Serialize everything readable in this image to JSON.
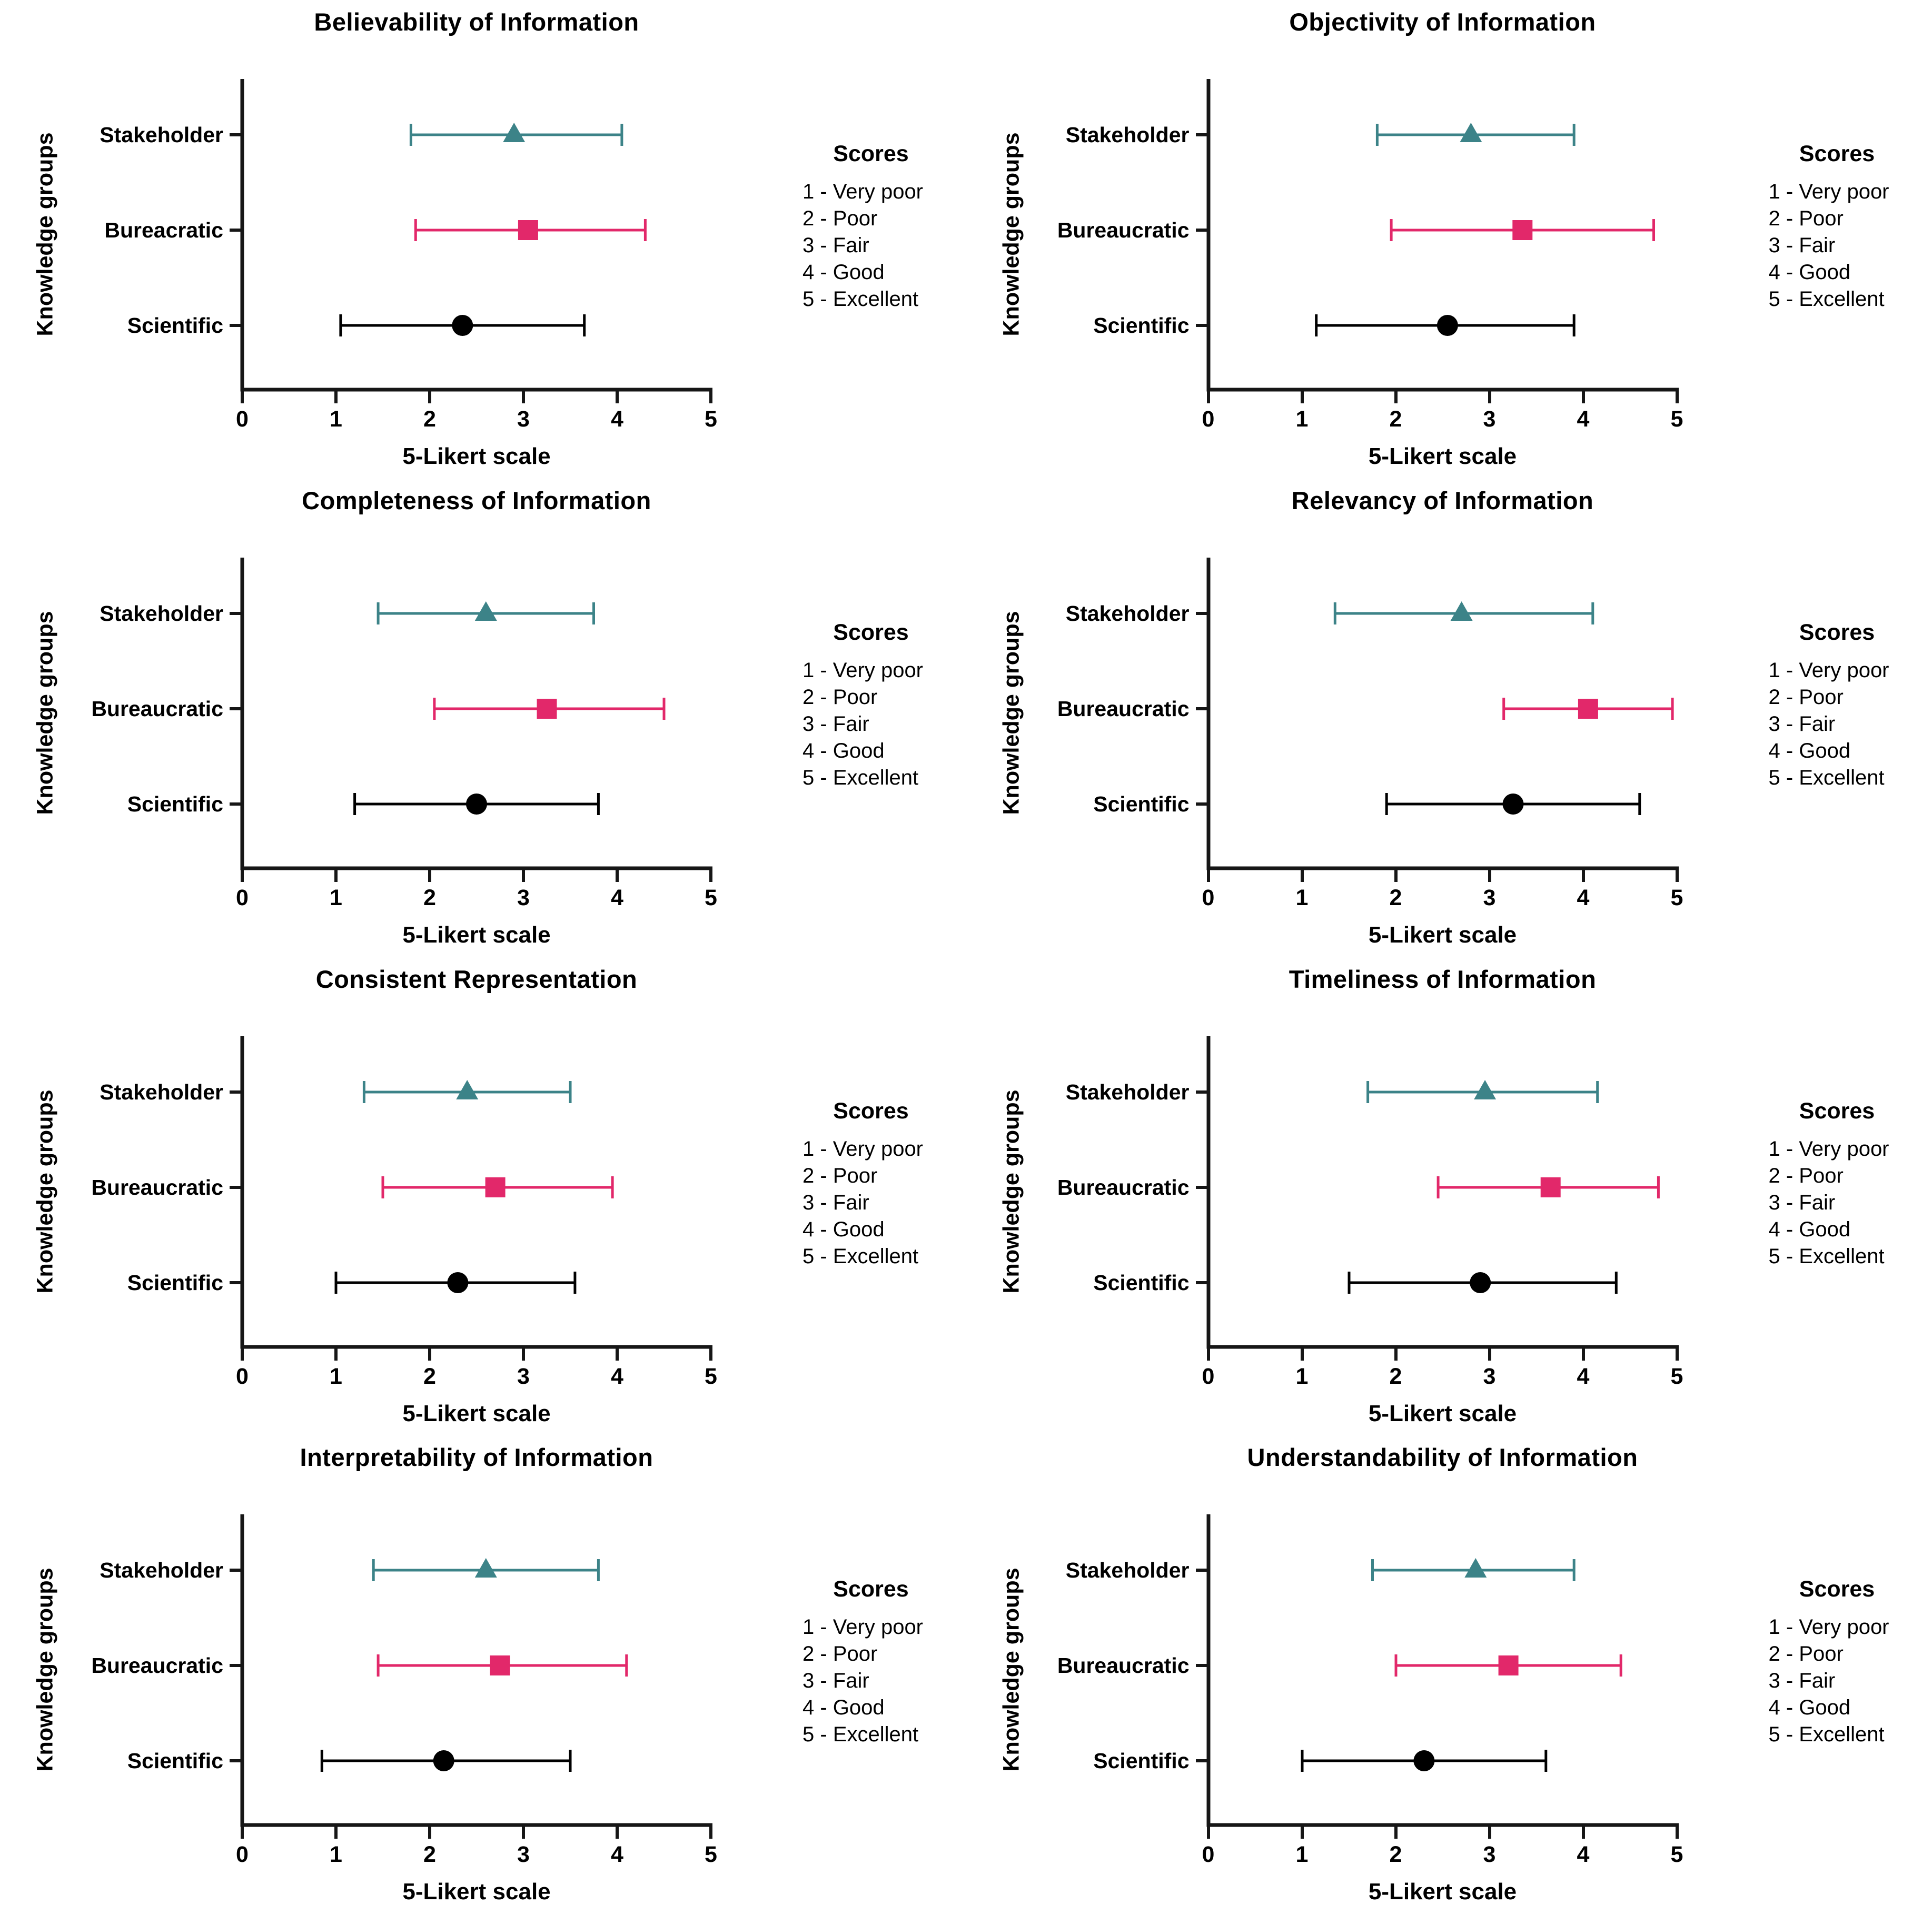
{
  "axis": {
    "xlabel": "5-Likert scale",
    "ylabel": "Knowledge groups",
    "xmin": 0,
    "xmax": 5,
    "ticks": [
      "0",
      "1",
      "2",
      "3",
      "4",
      "5"
    ]
  },
  "legend": {
    "title": "Scores",
    "items": [
      "1 - Very poor",
      "2 - Poor",
      "3 - Fair",
      "4 - Good",
      "5 - Excellent"
    ]
  },
  "colors": {
    "stakeholder_teal": "#3C8388",
    "bureaucratic_pink": "#E2286A",
    "scientific_black": "#000000",
    "axis_line": "#161616"
  },
  "markers": {
    "stakeholder": "triangle",
    "bureaucratic": "square",
    "scientific": "circle"
  },
  "chart_data": [
    {
      "type": "scatter",
      "title": "Believability of Information",
      "xlabel": "5-Likert scale",
      "ylabel": "Knowledge groups",
      "xlim": [
        0,
        5
      ],
      "grid": false,
      "legend_position": "right",
      "categories": [
        "Stakeholder",
        "Bureacratic",
        "Scientific"
      ],
      "groups": [
        {
          "label": "Stakeholder",
          "marker": "triangle",
          "color": "#3C8388",
          "mean": 2.9,
          "lo": 1.8,
          "hi": 4.05
        },
        {
          "label": "Bureacratic",
          "marker": "square",
          "color": "#E2286A",
          "mean": 3.05,
          "lo": 1.85,
          "hi": 4.3
        },
        {
          "label": "Scientific",
          "marker": "circle",
          "color": "#000000",
          "mean": 2.35,
          "lo": 1.05,
          "hi": 3.65
        }
      ]
    },
    {
      "type": "scatter",
      "title": "Objectivity of Information",
      "xlabel": "5-Likert scale",
      "ylabel": "Knowledge groups",
      "xlim": [
        0,
        5
      ],
      "grid": false,
      "legend_position": "right",
      "categories": [
        "Stakeholder",
        "Bureaucratic",
        "Scientific"
      ],
      "groups": [
        {
          "label": "Stakeholder",
          "marker": "triangle",
          "color": "#3C8388",
          "mean": 2.8,
          "lo": 1.8,
          "hi": 3.9
        },
        {
          "label": "Bureaucratic",
          "marker": "square",
          "color": "#E2286A",
          "mean": 3.35,
          "lo": 1.95,
          "hi": 4.75
        },
        {
          "label": "Scientific",
          "marker": "circle",
          "color": "#000000",
          "mean": 2.55,
          "lo": 1.15,
          "hi": 3.9
        }
      ]
    },
    {
      "type": "scatter",
      "title": "Completeness of Information",
      "xlabel": "5-Likert scale",
      "ylabel": "Knowledge groups",
      "xlim": [
        0,
        5
      ],
      "grid": false,
      "legend_position": "right",
      "categories": [
        "Stakeholder",
        "Bureaucratic",
        "Scientific"
      ],
      "groups": [
        {
          "label": "Stakeholder",
          "marker": "triangle",
          "color": "#3C8388",
          "mean": 2.6,
          "lo": 1.45,
          "hi": 3.75
        },
        {
          "label": "Bureaucratic",
          "marker": "square",
          "color": "#E2286A",
          "mean": 3.25,
          "lo": 2.05,
          "hi": 4.5
        },
        {
          "label": "Scientific",
          "marker": "circle",
          "color": "#000000",
          "mean": 2.5,
          "lo": 1.2,
          "hi": 3.8
        }
      ]
    },
    {
      "type": "scatter",
      "title": "Relevancy of Information",
      "xlabel": "5-Likert scale",
      "ylabel": "Knowledge groups",
      "xlim": [
        0,
        5
      ],
      "grid": false,
      "legend_position": "right",
      "categories": [
        "Stakeholder",
        "Bureaucratic",
        "Scientific"
      ],
      "groups": [
        {
          "label": "Stakeholder",
          "marker": "triangle",
          "color": "#3C8388",
          "mean": 2.7,
          "lo": 1.35,
          "hi": 4.1
        },
        {
          "label": "Bureaucratic",
          "marker": "square",
          "color": "#E2286A",
          "mean": 4.05,
          "lo": 3.15,
          "hi": 4.95
        },
        {
          "label": "Scientific",
          "marker": "circle",
          "color": "#000000",
          "mean": 3.25,
          "lo": 1.9,
          "hi": 4.6
        }
      ]
    },
    {
      "type": "scatter",
      "title": "Consistent Representation",
      "xlabel": "5-Likert scale",
      "ylabel": "Knowledge groups",
      "xlim": [
        0,
        5
      ],
      "grid": false,
      "legend_position": "right",
      "categories": [
        "Stakeholder",
        "Bureaucratic",
        "Scientific"
      ],
      "groups": [
        {
          "label": "Stakeholder",
          "marker": "triangle",
          "color": "#3C8388",
          "mean": 2.4,
          "lo": 1.3,
          "hi": 3.5
        },
        {
          "label": "Bureaucratic",
          "marker": "square",
          "color": "#E2286A",
          "mean": 2.7,
          "lo": 1.5,
          "hi": 3.95
        },
        {
          "label": "Scientific",
          "marker": "circle",
          "color": "#000000",
          "mean": 2.3,
          "lo": 1.0,
          "hi": 3.55
        }
      ]
    },
    {
      "type": "scatter",
      "title": "Timeliness of Information",
      "xlabel": "5-Likert scale",
      "ylabel": "Knowledge groups",
      "xlim": [
        0,
        5
      ],
      "grid": false,
      "legend_position": "right",
      "categories": [
        "Stakeholder",
        "Bureaucratic",
        "Scientific"
      ],
      "groups": [
        {
          "label": "Stakeholder",
          "marker": "triangle",
          "color": "#3C8388",
          "mean": 2.95,
          "lo": 1.7,
          "hi": 4.15
        },
        {
          "label": "Bureaucratic",
          "marker": "square",
          "color": "#E2286A",
          "mean": 3.65,
          "lo": 2.45,
          "hi": 4.8
        },
        {
          "label": "Scientific",
          "marker": "circle",
          "color": "#000000",
          "mean": 2.9,
          "lo": 1.5,
          "hi": 4.35
        }
      ]
    },
    {
      "type": "scatter",
      "title": "Interpretability of Information",
      "xlabel": "5-Likert scale",
      "ylabel": "Knowledge groups",
      "xlim": [
        0,
        5
      ],
      "grid": false,
      "legend_position": "right",
      "categories": [
        "Stakeholder",
        "Bureaucratic",
        "Scientific"
      ],
      "groups": [
        {
          "label": "Stakeholder",
          "marker": "triangle",
          "color": "#3C8388",
          "mean": 2.6,
          "lo": 1.4,
          "hi": 3.8
        },
        {
          "label": "Bureaucratic",
          "marker": "square",
          "color": "#E2286A",
          "mean": 2.75,
          "lo": 1.45,
          "hi": 4.1
        },
        {
          "label": "Scientific",
          "marker": "circle",
          "color": "#000000",
          "mean": 2.15,
          "lo": 0.85,
          "hi": 3.5
        }
      ]
    },
    {
      "type": "scatter",
      "title": "Understandability of Information",
      "xlabel": "5-Likert scale",
      "ylabel": "Knowledge groups",
      "xlim": [
        0,
        5
      ],
      "grid": false,
      "legend_position": "right",
      "categories": [
        "Stakeholder",
        "Bureaucratic",
        "Scientific"
      ],
      "groups": [
        {
          "label": "Stakeholder",
          "marker": "triangle",
          "color": "#3C8388",
          "mean": 2.85,
          "lo": 1.75,
          "hi": 3.9
        },
        {
          "label": "Bureaucratic",
          "marker": "square",
          "color": "#E2286A",
          "mean": 3.2,
          "lo": 2.0,
          "hi": 4.4
        },
        {
          "label": "Scientific",
          "marker": "circle",
          "color": "#000000",
          "mean": 2.3,
          "lo": 1.0,
          "hi": 3.6
        }
      ]
    }
  ]
}
